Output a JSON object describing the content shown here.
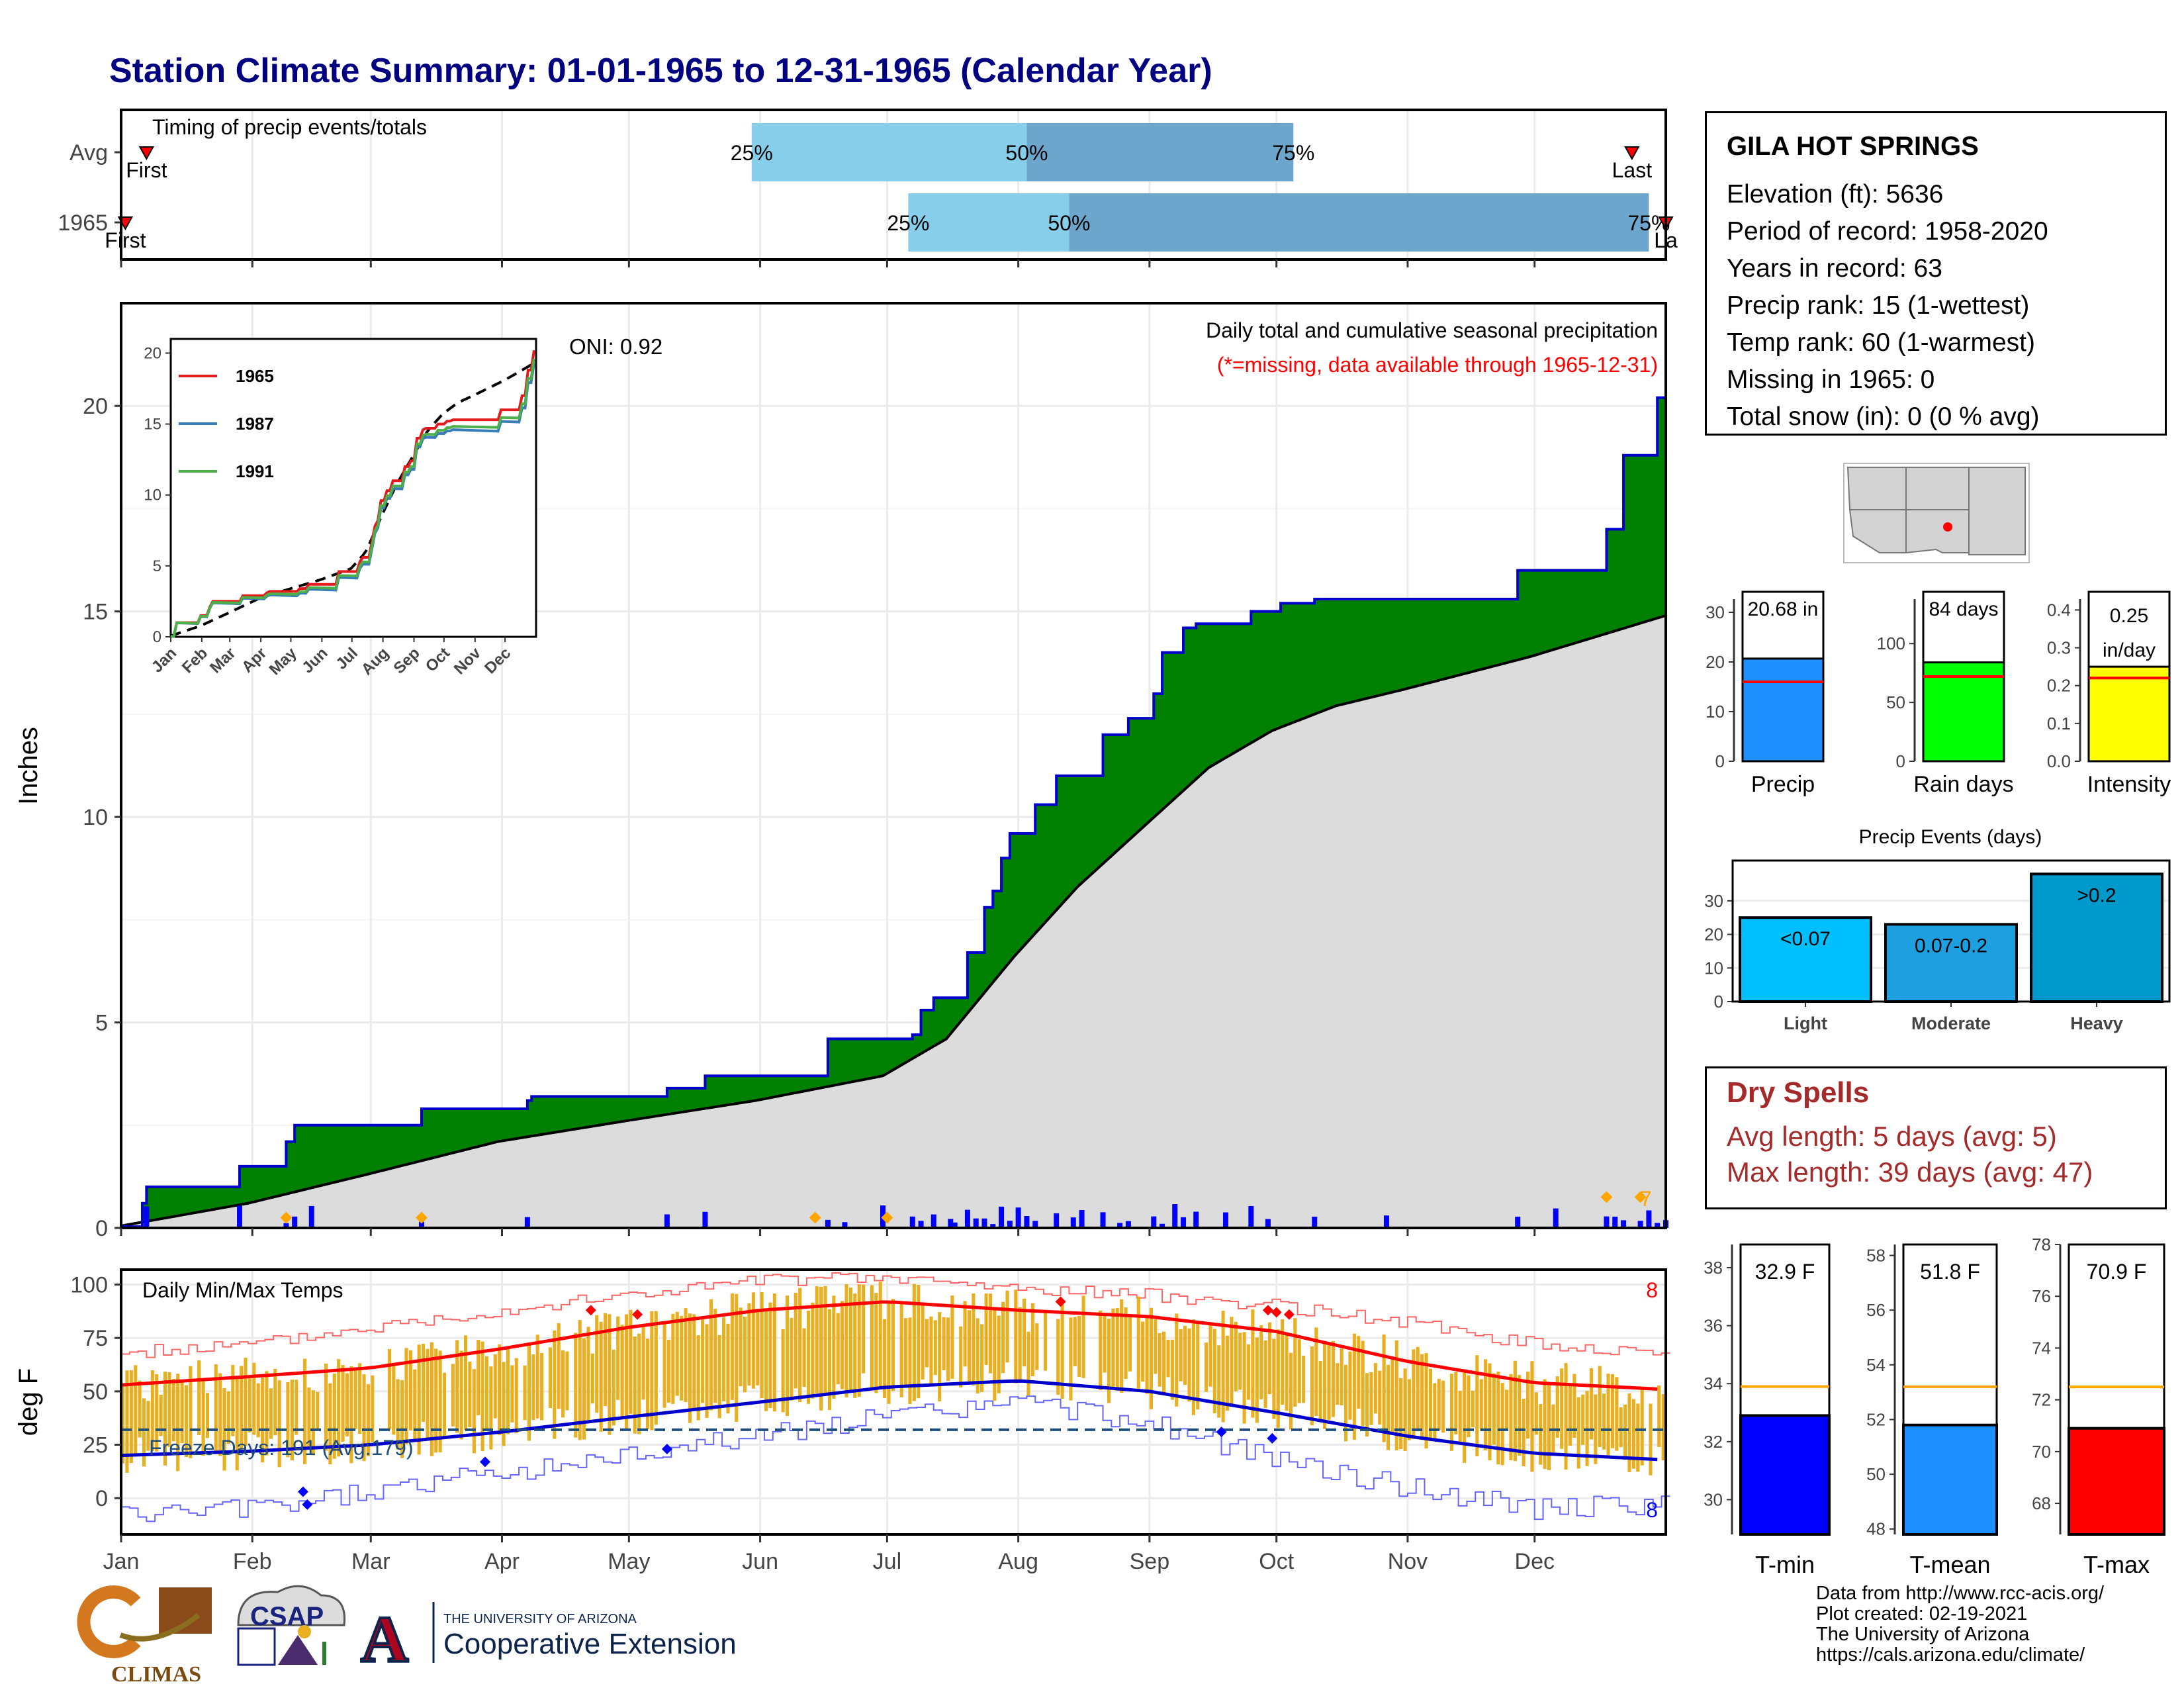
{
  "title": "Station Climate Summary: 01-01-1965 to 12-31-1965 (Calendar Year)",
  "colors": {
    "title": "#000080",
    "cumfill": "#008000",
    "cumline": "#0000cc",
    "climo": "#dcdcdc",
    "bars": "#0000ff",
    "tempbar": "#e8b020",
    "tmax": "#ff0000",
    "tmin": "#0000cc",
    "extreme": "#ffa500",
    "q1": "#87ceeb",
    "q2": "#6ca6cd"
  },
  "timing": {
    "title": "Timing of precip events/totals",
    "rows": [
      {
        "label": "Avg",
        "first_doy": 7,
        "last_doy": 358,
        "q25": 150,
        "q50": 215,
        "q75": 278,
        "first_label": "First",
        "last_label": "Last",
        "q25_label": "25%",
        "q50_label": "50%",
        "q75_label": "75%"
      },
      {
        "label": "1965",
        "first_doy": 2,
        "last_doy": 366,
        "q25": 187,
        "q50": 225,
        "q75": 362,
        "first_label": "First",
        "last_label": "La",
        "q25_label": "25%",
        "q50_label": "50%",
        "q75_label": "75%"
      }
    ]
  },
  "precip": {
    "ylabel": "Inches",
    "ylim": [
      0,
      22.5
    ],
    "yticks": [
      "0",
      "5",
      "10",
      "15",
      "20"
    ],
    "oni_label": "ONI: 0.92",
    "caption1": "Daily total and cumulative seasonal precipitation",
    "caption2": "(*=missing, data available through 1965-12-31)",
    "extreme_count": "7"
  },
  "months": [
    "Jan",
    "Feb",
    "Mar",
    "Apr",
    "May",
    "Jun",
    "Jul",
    "Aug",
    "Sep",
    "Oct",
    "Nov",
    "Dec"
  ],
  "inset": {
    "ylim": [
      0,
      21
    ],
    "yticks": [
      "0",
      "5",
      "10",
      "15",
      "20"
    ],
    "series": [
      {
        "name": "1965",
        "color": "#e41a1c"
      },
      {
        "name": "1987",
        "color": "#377eb8"
      },
      {
        "name": "1991",
        "color": "#4daf4a"
      }
    ]
  },
  "temps": {
    "ylabel": "deg F",
    "title": "Daily Min/Max Temps",
    "yticks": [
      "0",
      "25",
      "50",
      "75",
      "100"
    ],
    "ylim": [
      -17,
      107
    ],
    "freeze_label": "Freeze Days: 191 (Avg:179)",
    "max_records": "8",
    "min_records": "8"
  },
  "info": {
    "station": "GILA HOT SPRINGS",
    "lines": [
      "Elevation (ft): 5636",
      "Period of record: 1958-2020",
      "Years in record: 63",
      "Precip rank: 15 (1-wettest)",
      "Temp rank: 60 (1-warmest)",
      "Missing in 1965: 0",
      "Total snow (in): 0 (0 % avg)"
    ]
  },
  "mini_bars": [
    {
      "label": "Precip",
      "value": 20.68,
      "text": "20.68 in",
      "avg": 16,
      "ymax": 32,
      "ticks": [
        "0",
        "10",
        "20",
        "30"
      ],
      "tickvals": [
        0,
        10,
        20,
        30
      ],
      "color": "#1e90ff"
    },
    {
      "label": "Rain days",
      "value": 84,
      "text": "84 days",
      "avg": 72,
      "ymax": 135,
      "ticks": [
        "0",
        "50",
        "100"
      ],
      "tickvals": [
        0,
        50,
        100
      ],
      "color": "#00ff00"
    },
    {
      "label": "Intensity",
      "value": 0.25,
      "text": "0.25 in/day",
      "text1": "0.25",
      "text2": "in/day",
      "avg": 0.22,
      "ymax": 0.42,
      "ticks": [
        "0.0",
        "0.1",
        "0.2",
        "0.3",
        "0.4"
      ],
      "tickvals": [
        0,
        0.1,
        0.2,
        0.3,
        0.4
      ],
      "color": "#ffff00"
    }
  ],
  "events": {
    "title": "Precip Events (days)",
    "categories": [
      "Light",
      "Moderate",
      "Heavy"
    ],
    "labels": [
      "<0.07",
      "0.07-0.2",
      ">0.2"
    ],
    "values": [
      25,
      23,
      38
    ],
    "ticks": [
      "0",
      "10",
      "20",
      "30"
    ],
    "colors": [
      "#00bfff",
      "#1e9fdf",
      "#0099cc"
    ]
  },
  "dry": {
    "title": "Dry Spells",
    "avg_line": "Avg length: 5 days (avg: 5)",
    "max_line": "Max length: 39 days (avg: 47)"
  },
  "temp_bars": [
    {
      "label": "T-min",
      "value": 32.9,
      "text": "32.9 F",
      "avg": 33.9,
      "ylim": [
        28.8,
        38.8
      ],
      "ticks": [
        "30",
        "32",
        "34",
        "36",
        "38"
      ],
      "tickvals": [
        30,
        32,
        34,
        36,
        38
      ],
      "color": "#0000ff"
    },
    {
      "label": "T-mean",
      "value": 51.8,
      "text": "51.8 F",
      "avg": 53.2,
      "ylim": [
        47.8,
        58.4
      ],
      "ticks": [
        "48",
        "50",
        "52",
        "54",
        "56",
        "58"
      ],
      "tickvals": [
        48,
        50,
        52,
        54,
        56,
        58
      ],
      "color": "#1e90ff"
    },
    {
      "label": "T-max",
      "value": 70.9,
      "text": "70.9 F",
      "avg": 72.5,
      "ylim": [
        66.8,
        78
      ],
      "ticks": [
        "68",
        "70",
        "72",
        "74",
        "76",
        "78"
      ],
      "tickvals": [
        68,
        70,
        72,
        74,
        76,
        78
      ],
      "color": "#ff0000"
    }
  ],
  "credits": [
    "Data from http://www.rcc-acis.org/",
    "Plot created: 02-19-2021",
    "The University of Arizona",
    "https://cals.arizona.edu/climate/"
  ],
  "logos": {
    "climas": "CLIMAS",
    "csap": "CSAP",
    "ua_small": "THE UNIVERSITY OF ARIZONA",
    "ua_big": "Cooperative Extension"
  },
  "chart_data": [
    {
      "type": "area",
      "title": "Daily total and cumulative seasonal precipitation",
      "ylabel": "Inches",
      "ylim": [
        0,
        22.5
      ],
      "x_unit": "day of year 1965",
      "series": [
        {
          "name": "1965",
          "x": [
            1,
            6,
            7,
            29,
            40,
            42,
            46,
            72,
            97,
            98,
            130,
            139,
            168,
            188,
            190,
            193,
            201,
            205,
            207,
            209,
            211,
            215,
            217,
            222,
            233,
            239,
            245,
            247,
            252,
            255,
            268,
            272,
            275,
            283,
            331,
            352,
            356,
            364,
            366
          ],
          "values": [
            0.03,
            0.6,
            1.0,
            1.5,
            2.1,
            2.5,
            2.5,
            2.9,
            3.1,
            3.2,
            3.4,
            3.7,
            4.6,
            4.7,
            5.3,
            5.6,
            6.7,
            7.8,
            8.2,
            9.0,
            9.6,
            9.6,
            10.3,
            11.0,
            12.0,
            12.4,
            13.0,
            14.0,
            14.6,
            14.7,
            15.0,
            15.0,
            15.2,
            15.3,
            16.0,
            17.0,
            18.8,
            20.2,
            20.68
          ]
        },
        {
          "name": "average",
          "x": [
            1,
            31,
            59,
            90,
            120,
            151,
            181,
            196,
            212,
            227,
            243,
            258,
            273,
            288,
            304,
            319,
            334,
            350,
            366
          ],
          "values": [
            0.05,
            0.6,
            1.3,
            2.1,
            2.6,
            3.1,
            3.7,
            4.6,
            6.6,
            8.3,
            9.8,
            11.2,
            12.1,
            12.7,
            13.1,
            13.5,
            13.9,
            14.4,
            14.9
          ]
        }
      ]
    },
    {
      "type": "line",
      "title": "Daily Min/Max Temps",
      "ylabel": "deg F",
      "ylim": [
        -17,
        107
      ],
      "series": [
        {
          "name": "Normal max",
          "x": [
            1,
            32,
            60,
            91,
            121,
            152,
            182,
            213,
            244,
            274,
            305,
            335,
            365
          ],
          "values": [
            53,
            57,
            61,
            70,
            80,
            88,
            92,
            88,
            85,
            78,
            64,
            54,
            51
          ]
        },
        {
          "name": "Normal min",
          "x": [
            1,
            32,
            60,
            91,
            121,
            152,
            182,
            213,
            244,
            274,
            305,
            335,
            365
          ],
          "values": [
            20,
            22,
            25,
            31,
            38,
            45,
            52,
            55,
            50,
            40,
            29,
            21,
            18
          ]
        },
        {
          "name": "Record max",
          "x": [
            1,
            32,
            60,
            91,
            121,
            152,
            182,
            213,
            244,
            274,
            305,
            335,
            365
          ],
          "values": [
            68,
            72,
            80,
            88,
            95,
            102,
            103,
            98,
            95,
            90,
            82,
            72,
            68
          ]
        },
        {
          "name": "Record min",
          "x": [
            1,
            32,
            60,
            91,
            121,
            152,
            182,
            213,
            244,
            274,
            305,
            335,
            365
          ],
          "values": [
            -8,
            -5,
            3,
            12,
            20,
            30,
            38,
            45,
            35,
            18,
            5,
            -5,
            -3
          ]
        }
      ]
    }
  ]
}
